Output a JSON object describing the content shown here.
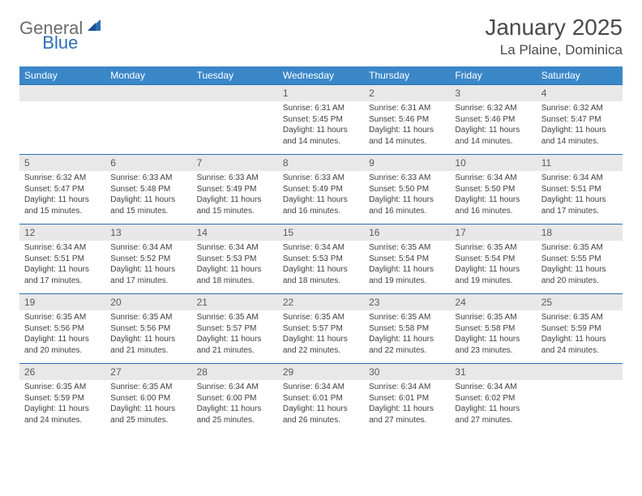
{
  "logo": {
    "text_gray": "General",
    "text_blue": "Blue"
  },
  "title": "January 2025",
  "location": "La Plaine, Dominica",
  "colors": {
    "header_bg": "#3a87c8",
    "header_text": "#ffffff",
    "daynum_bg": "#e8e8e8",
    "border": "#2a6fb5",
    "body_text": "#404040"
  },
  "day_names": [
    "Sunday",
    "Monday",
    "Tuesday",
    "Wednesday",
    "Thursday",
    "Friday",
    "Saturday"
  ],
  "weeks": [
    [
      null,
      null,
      null,
      {
        "n": "1",
        "sunrise": "6:31 AM",
        "sunset": "5:45 PM",
        "daylight": "11 hours and 14 minutes."
      },
      {
        "n": "2",
        "sunrise": "6:31 AM",
        "sunset": "5:46 PM",
        "daylight": "11 hours and 14 minutes."
      },
      {
        "n": "3",
        "sunrise": "6:32 AM",
        "sunset": "5:46 PM",
        "daylight": "11 hours and 14 minutes."
      },
      {
        "n": "4",
        "sunrise": "6:32 AM",
        "sunset": "5:47 PM",
        "daylight": "11 hours and 14 minutes."
      }
    ],
    [
      {
        "n": "5",
        "sunrise": "6:32 AM",
        "sunset": "5:47 PM",
        "daylight": "11 hours and 15 minutes."
      },
      {
        "n": "6",
        "sunrise": "6:33 AM",
        "sunset": "5:48 PM",
        "daylight": "11 hours and 15 minutes."
      },
      {
        "n": "7",
        "sunrise": "6:33 AM",
        "sunset": "5:49 PM",
        "daylight": "11 hours and 15 minutes."
      },
      {
        "n": "8",
        "sunrise": "6:33 AM",
        "sunset": "5:49 PM",
        "daylight": "11 hours and 16 minutes."
      },
      {
        "n": "9",
        "sunrise": "6:33 AM",
        "sunset": "5:50 PM",
        "daylight": "11 hours and 16 minutes."
      },
      {
        "n": "10",
        "sunrise": "6:34 AM",
        "sunset": "5:50 PM",
        "daylight": "11 hours and 16 minutes."
      },
      {
        "n": "11",
        "sunrise": "6:34 AM",
        "sunset": "5:51 PM",
        "daylight": "11 hours and 17 minutes."
      }
    ],
    [
      {
        "n": "12",
        "sunrise": "6:34 AM",
        "sunset": "5:51 PM",
        "daylight": "11 hours and 17 minutes."
      },
      {
        "n": "13",
        "sunrise": "6:34 AM",
        "sunset": "5:52 PM",
        "daylight": "11 hours and 17 minutes."
      },
      {
        "n": "14",
        "sunrise": "6:34 AM",
        "sunset": "5:53 PM",
        "daylight": "11 hours and 18 minutes."
      },
      {
        "n": "15",
        "sunrise": "6:34 AM",
        "sunset": "5:53 PM",
        "daylight": "11 hours and 18 minutes."
      },
      {
        "n": "16",
        "sunrise": "6:35 AM",
        "sunset": "5:54 PM",
        "daylight": "11 hours and 19 minutes."
      },
      {
        "n": "17",
        "sunrise": "6:35 AM",
        "sunset": "5:54 PM",
        "daylight": "11 hours and 19 minutes."
      },
      {
        "n": "18",
        "sunrise": "6:35 AM",
        "sunset": "5:55 PM",
        "daylight": "11 hours and 20 minutes."
      }
    ],
    [
      {
        "n": "19",
        "sunrise": "6:35 AM",
        "sunset": "5:56 PM",
        "daylight": "11 hours and 20 minutes."
      },
      {
        "n": "20",
        "sunrise": "6:35 AM",
        "sunset": "5:56 PM",
        "daylight": "11 hours and 21 minutes."
      },
      {
        "n": "21",
        "sunrise": "6:35 AM",
        "sunset": "5:57 PM",
        "daylight": "11 hours and 21 minutes."
      },
      {
        "n": "22",
        "sunrise": "6:35 AM",
        "sunset": "5:57 PM",
        "daylight": "11 hours and 22 minutes."
      },
      {
        "n": "23",
        "sunrise": "6:35 AM",
        "sunset": "5:58 PM",
        "daylight": "11 hours and 22 minutes."
      },
      {
        "n": "24",
        "sunrise": "6:35 AM",
        "sunset": "5:58 PM",
        "daylight": "11 hours and 23 minutes."
      },
      {
        "n": "25",
        "sunrise": "6:35 AM",
        "sunset": "5:59 PM",
        "daylight": "11 hours and 24 minutes."
      }
    ],
    [
      {
        "n": "26",
        "sunrise": "6:35 AM",
        "sunset": "5:59 PM",
        "daylight": "11 hours and 24 minutes."
      },
      {
        "n": "27",
        "sunrise": "6:35 AM",
        "sunset": "6:00 PM",
        "daylight": "11 hours and 25 minutes."
      },
      {
        "n": "28",
        "sunrise": "6:34 AM",
        "sunset": "6:00 PM",
        "daylight": "11 hours and 25 minutes."
      },
      {
        "n": "29",
        "sunrise": "6:34 AM",
        "sunset": "6:01 PM",
        "daylight": "11 hours and 26 minutes."
      },
      {
        "n": "30",
        "sunrise": "6:34 AM",
        "sunset": "6:01 PM",
        "daylight": "11 hours and 27 minutes."
      },
      {
        "n": "31",
        "sunrise": "6:34 AM",
        "sunset": "6:02 PM",
        "daylight": "11 hours and 27 minutes."
      },
      null
    ]
  ],
  "labels": {
    "sunrise": "Sunrise: ",
    "sunset": "Sunset: ",
    "daylight": "Daylight: "
  }
}
